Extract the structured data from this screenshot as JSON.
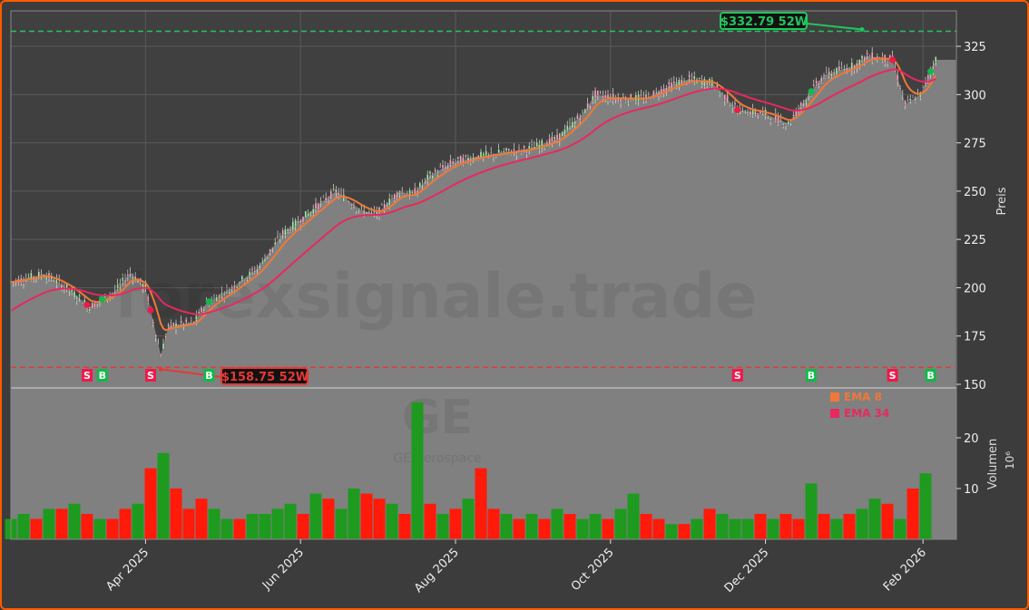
{
  "watermark": {
    "site": "forexsignale.trade",
    "ticker": "GE",
    "name": "GE Aerospace"
  },
  "chart_data": {
    "type": "candlestick-with-volume",
    "price_axis": {
      "label": "Preis",
      "ticks": [
        150,
        175,
        200,
        225,
        250,
        275,
        300,
        325
      ],
      "range": [
        148,
        342
      ]
    },
    "volume_axis": {
      "label": "Volumen",
      "unit": "10⁶",
      "ticks": [
        10,
        20
      ],
      "range": [
        0,
        30
      ]
    },
    "x_axis": {
      "ticks": [
        {
          "date": "2025-04-01",
          "label": "Apr 2025"
        },
        {
          "date": "2025-06-01",
          "label": "Jun 2025"
        },
        {
          "date": "2025-08-01",
          "label": "Aug 2025"
        },
        {
          "date": "2025-10-01",
          "label": "Oct 2025"
        },
        {
          "date": "2025-12-01",
          "label": "Dec 2025"
        },
        {
          "date": "2026-02-01",
          "label": "Feb 2026"
        }
      ],
      "range": [
        "2025-02-07",
        "2026-02-16"
      ]
    },
    "grid": true,
    "close": [
      [
        "2025-02-07",
        203
      ],
      [
        "2025-02-20",
        207
      ],
      [
        "2025-03-01",
        200
      ],
      [
        "2025-03-10",
        190
      ],
      [
        "2025-03-20",
        198
      ],
      [
        "2025-03-26",
        208
      ],
      [
        "2025-04-01",
        200
      ],
      [
        "2025-04-07",
        165
      ],
      [
        "2025-04-10",
        180
      ],
      [
        "2025-04-20",
        182
      ],
      [
        "2025-04-25",
        192
      ],
      [
        "2025-05-05",
        200
      ],
      [
        "2025-05-15",
        210
      ],
      [
        "2025-05-25",
        228
      ],
      [
        "2025-06-01",
        235
      ],
      [
        "2025-06-10",
        245
      ],
      [
        "2025-06-15",
        250
      ],
      [
        "2025-06-25",
        240
      ],
      [
        "2025-07-01",
        238
      ],
      [
        "2025-07-10",
        250
      ],
      [
        "2025-07-15",
        248
      ],
      [
        "2025-07-22",
        258
      ],
      [
        "2025-07-31",
        265
      ],
      [
        "2025-08-10",
        268
      ],
      [
        "2025-08-20",
        270
      ],
      [
        "2025-08-30",
        272
      ],
      [
        "2025-09-10",
        277
      ],
      [
        "2025-09-20",
        290
      ],
      [
        "2025-09-25",
        300
      ],
      [
        "2025-10-05",
        298
      ],
      [
        "2025-10-15",
        298
      ],
      [
        "2025-10-25",
        305
      ],
      [
        "2025-11-01",
        308
      ],
      [
        "2025-11-10",
        306
      ],
      [
        "2025-11-20",
        292
      ],
      [
        "2025-12-01",
        290
      ],
      [
        "2025-12-10",
        285
      ],
      [
        "2025-12-18",
        300
      ],
      [
        "2025-12-24",
        310
      ],
      [
        "2026-01-05",
        315
      ],
      [
        "2026-01-10",
        320
      ],
      [
        "2026-01-20",
        318
      ],
      [
        "2026-01-25",
        295
      ],
      [
        "2026-01-31",
        300
      ],
      [
        "2026-02-06",
        318
      ]
    ],
    "volume_start": "2025-02-07",
    "volume_step_days": 5,
    "volume": [
      4,
      5,
      4,
      6,
      6,
      7,
      5,
      4,
      4,
      6,
      7,
      14,
      17,
      10,
      6,
      8,
      6,
      4,
      4,
      5,
      5,
      6,
      7,
      5,
      9,
      8,
      6,
      10,
      9,
      8,
      7,
      5,
      27,
      7,
      5,
      6,
      8,
      14,
      6,
      5,
      4,
      5,
      4,
      6,
      5,
      4,
      5,
      4,
      6,
      9,
      5,
      4,
      3,
      3,
      4,
      6,
      5,
      4,
      4,
      5,
      4,
      5,
      4,
      11,
      5,
      4,
      5,
      6,
      8,
      7,
      4,
      10,
      13
    ],
    "volume_up": [
      true,
      true,
      false,
      true,
      false,
      true,
      false,
      true,
      false,
      false,
      true,
      false,
      true,
      false,
      false,
      false,
      true,
      true,
      false,
      true,
      true,
      true,
      true,
      false,
      true,
      false,
      true,
      true,
      false,
      false,
      true,
      false,
      true,
      false,
      true,
      false,
      true,
      false,
      false,
      true,
      false,
      true,
      false,
      true,
      false,
      true,
      true,
      false,
      true,
      true,
      false,
      false,
      true,
      false,
      true,
      false,
      true,
      true,
      true,
      false,
      true,
      false,
      false,
      true,
      false,
      true,
      false,
      true,
      true,
      false,
      true,
      false,
      true
    ],
    "series": [
      {
        "name": "EMA 8",
        "color": "#f07838",
        "period": 8
      },
      {
        "name": "EMA 34",
        "color": "#e8285f",
        "period": 34
      }
    ],
    "legend": "upper-right of volume panel",
    "levels": [
      {
        "label": "$332.79 52W",
        "value": 332.79,
        "date": "2026-01-08",
        "color": "#22c55e"
      },
      {
        "label": "$158.75 52W",
        "value": 158.75,
        "date": "2025-04-07",
        "color": "#e53935"
      }
    ],
    "signals": [
      {
        "type": "S",
        "date": "2025-03-09"
      },
      {
        "type": "B",
        "date": "2025-03-15"
      },
      {
        "type": "S",
        "date": "2025-04-03"
      },
      {
        "type": "B",
        "date": "2025-04-26"
      },
      {
        "type": "S",
        "date": "2025-11-20"
      },
      {
        "type": "B",
        "date": "2025-12-19"
      },
      {
        "type": "S",
        "date": "2026-01-20"
      },
      {
        "type": "B",
        "date": "2026-02-04"
      }
    ],
    "colors": {
      "buy": "#10b94a",
      "sell": "#f0184a",
      "up_volume": "#1e9a1e",
      "down_volume": "#ff1a0a"
    }
  }
}
